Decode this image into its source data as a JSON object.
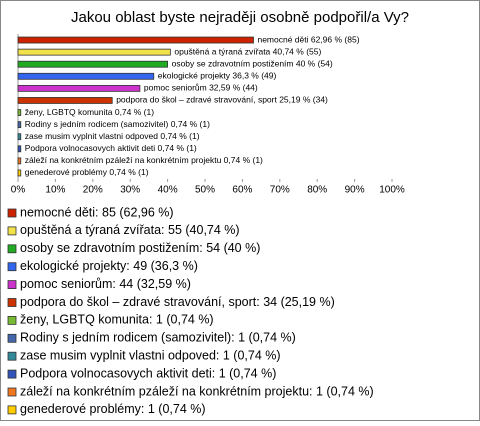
{
  "chart_data": {
    "type": "bar",
    "orientation": "horizontal",
    "title": "Jakou oblast byste nejraději osobně podpořil/a Vy?",
    "categories": [
      "nemocné děti",
      "opuštěná a týraná zvířata",
      "osoby se zdravotním postižením",
      "ekologické projekty",
      "pomoc seniorům",
      "podpora do škol – zdravé stravování, sport",
      "ženy, LGBTQ komunita",
      "Rodiny s jedním rodicem (samozivitel)",
      "zase musim vyplnit vlastni odpoved",
      "Podpora volnocasovych aktivit deti",
      "záleží na konkrétním pzáleží na konkrétním projektu",
      "genederové problémy"
    ],
    "values": [
      62.96,
      40.74,
      40,
      36.3,
      32.59,
      25.19,
      0.74,
      0.74,
      0.74,
      0.74,
      0.74,
      0.74
    ],
    "value_labels": [
      "nemocné děti 62,96 % (85)",
      "opuštěná a týraná zvířata 40,74 % (55)",
      "osoby se zdravotním postižením 40 % (54)",
      "ekologické projekty 36,3 % (49)",
      "pomoc seniorům 32,59 % (44)",
      "podpora do škol – zdravé stravování, sport 25,19 % (34)",
      "ženy, LGBTQ komunita 0,74 % (1)",
      "Rodiny s jedním rodicem (samozivitel) 0,74 % (1)",
      "zase musim vyplnit vlastni odpoved 0,74 % (1)",
      "Podpora volnocasovych aktivit deti 0,74 % (1)",
      "záleží na konkrétním pzáleží na konkrétním projektu 0,74 % (1)",
      "genederové problémy 0,74 % (1)"
    ],
    "legend_labels": [
      "nemocné děti: 85 (62,96 %)",
      "opuštěná a týraná zvířata: 55 (40,74 %)",
      "osoby se zdravotním postižením: 54 (40 %)",
      "ekologické projekty: 49 (36,3 %)",
      "pomoc seniorům: 44 (32,59 %)",
      "podpora do škol – zdravé stravování, sport: 34 (25,19 %)",
      "ženy, LGBTQ komunita: 1 (0,74 %)",
      "Rodiny s jedním rodicem (samozivitel): 1 (0,74 %)",
      "zase musim vyplnit vlastni odpoved: 1 (0,74 %)",
      "Podpora volnocasovych aktivit deti: 1 (0,74 %)",
      "záleží na konkrétním pzáleží na konkrétním projektu: 1 (0,74 %)",
      "genederové problémy: 1 (0,74 %)"
    ],
    "colors": [
      "#cc2200",
      "#f2e24a",
      "#22aa22",
      "#3366ee",
      "#cc33cc",
      "#cc3300",
      "#77bb33",
      "#4466aa",
      "#338899",
      "#3355bb",
      "#ee7722",
      "#ffcc00"
    ],
    "xlim": [
      0,
      100
    ],
    "xticks": [
      {
        "value": 0,
        "label": "0%"
      },
      {
        "value": 10,
        "label": "10%"
      },
      {
        "value": 20,
        "label": "20%"
      },
      {
        "value": 30,
        "label": "30%"
      },
      {
        "value": 40,
        "label": "40%"
      },
      {
        "value": 50,
        "label": "50%"
      },
      {
        "value": 60,
        "label": "60%"
      },
      {
        "value": 70,
        "label": "70%"
      },
      {
        "value": 80,
        "label": "80%"
      },
      {
        "value": 90,
        "label": "90%"
      },
      {
        "value": 100,
        "label": "100%"
      }
    ]
  }
}
